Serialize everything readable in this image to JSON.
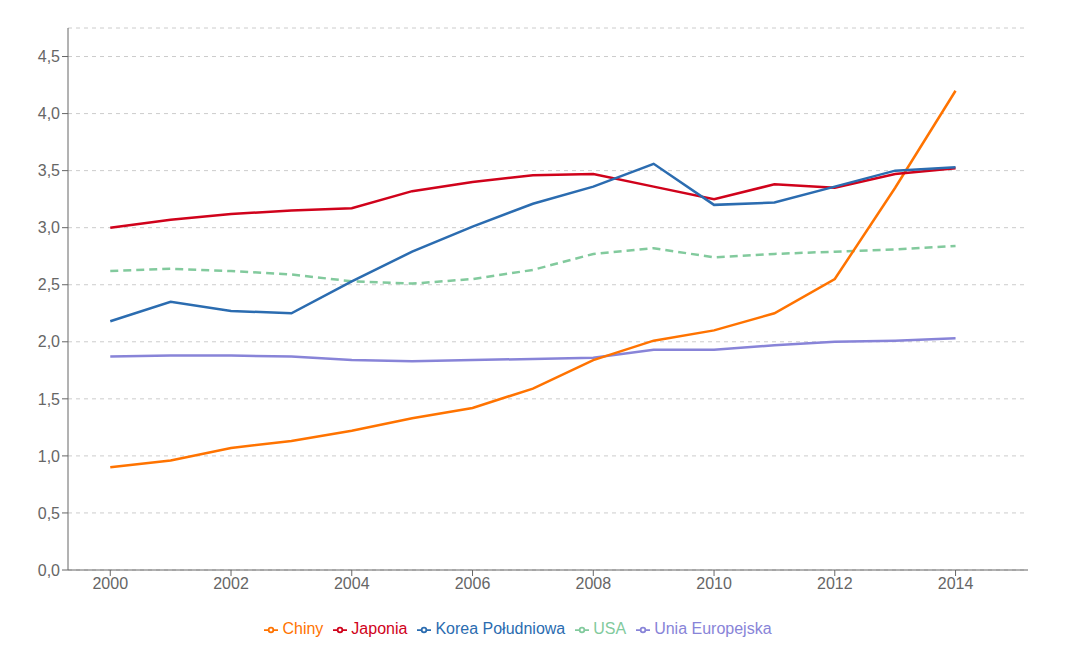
{
  "chart_data": {
    "type": "line",
    "x": [
      2000,
      2001,
      2002,
      2003,
      2004,
      2005,
      2006,
      2007,
      2008,
      2009,
      2010,
      2011,
      2012,
      2013,
      2014
    ],
    "series": [
      {
        "name": "Unia Europejska",
        "color": "#8884d8",
        "line_style": "solid",
        "values": [
          1.87,
          1.88,
          1.88,
          1.87,
          1.84,
          1.83,
          1.84,
          1.85,
          1.86,
          1.93,
          1.93,
          1.97,
          2.0,
          2.01,
          2.03
        ]
      },
      {
        "name": "USA",
        "color": "#82ca9d",
        "line_style": "dashed",
        "values": [
          2.62,
          2.64,
          2.62,
          2.59,
          2.53,
          2.51,
          2.55,
          2.63,
          2.77,
          2.82,
          2.74,
          2.77,
          2.79,
          2.81,
          2.84
        ]
      },
      {
        "name": "Chiny",
        "color": "#ff7300",
        "line_style": "solid",
        "values": [
          0.9,
          0.96,
          1.07,
          1.13,
          1.22,
          1.33,
          1.42,
          1.59,
          1.84,
          2.01,
          2.1,
          2.25,
          2.55,
          3.35,
          4.2
        ]
      },
      {
        "name": "Japonia",
        "color": "#d0021b",
        "line_style": "solid",
        "values": [
          3.0,
          3.07,
          3.12,
          3.15,
          3.17,
          3.32,
          3.4,
          3.46,
          3.47,
          3.36,
          3.25,
          3.38,
          3.35,
          3.47,
          3.52
        ]
      },
      {
        "name": "Korea Południowa",
        "color": "#2b6cb0",
        "line_style": "solid",
        "values": [
          2.18,
          2.35,
          2.27,
          2.25,
          2.53,
          2.79,
          3.01,
          3.21,
          3.36,
          3.56,
          3.2,
          3.22,
          3.36,
          3.5,
          3.53
        ]
      }
    ],
    "xlim": [
      1999.3,
      2015.2
    ],
    "xticks": [
      2000,
      2002,
      2004,
      2006,
      2008,
      2010,
      2012,
      2014
    ],
    "ylim": [
      0.0,
      4.75
    ],
    "yticks": [
      {
        "value": 0.0,
        "label": "0,0"
      },
      {
        "value": 0.5,
        "label": "0,5"
      },
      {
        "value": 1.0,
        "label": "1,0"
      },
      {
        "value": 1.5,
        "label": "1,5"
      },
      {
        "value": 2.0,
        "label": "2,0"
      },
      {
        "value": 2.5,
        "label": "2,5"
      },
      {
        "value": 3.0,
        "label": "3,0"
      },
      {
        "value": 3.5,
        "label": "3,5"
      },
      {
        "value": 4.0,
        "label": "4,0"
      },
      {
        "value": 4.5,
        "label": "4,5"
      }
    ],
    "grid": "y",
    "legend": "bottom"
  }
}
